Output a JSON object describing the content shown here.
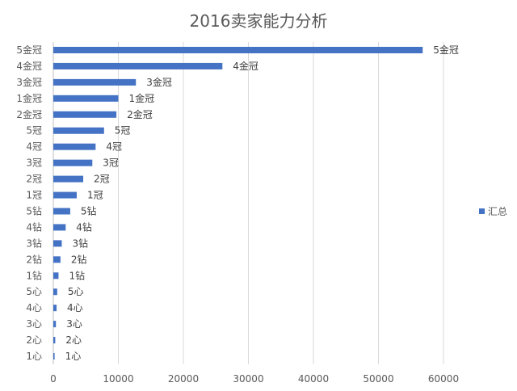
{
  "chart_data": {
    "type": "bar",
    "orientation": "horizontal",
    "title": "2016卖家能力分析",
    "categories": [
      "5金冠",
      "4金冠",
      "3金冠",
      "1金冠",
      "2金冠",
      "5冠",
      "4冠",
      "3冠",
      "2冠",
      "1冠",
      "5钻",
      "4钻",
      "3钻",
      "2钻",
      "1钻",
      "5心",
      "4心",
      "3心",
      "2心",
      "1心"
    ],
    "series": [
      {
        "name": "汇总",
        "color": "#4472C4",
        "values": [
          56800,
          26000,
          12700,
          10000,
          9700,
          7800,
          6500,
          6000,
          4600,
          3600,
          2600,
          1900,
          1300,
          1100,
          800,
          600,
          500,
          400,
          300,
          200
        ]
      }
    ],
    "data_labels": [
      "5金冠",
      "4金冠",
      "3金冠",
      "1金冠",
      "2金冠",
      "5冠",
      "4冠",
      "3冠",
      "2冠",
      "1冠",
      "5钻",
      "4钻",
      "3钻",
      "2钻",
      "1钻",
      "5心",
      "4心",
      "3心",
      "2心",
      "1心"
    ],
    "x_ticks": [
      "0",
      "10000",
      "20000",
      "30000",
      "40000",
      "50000",
      "60000"
    ],
    "xlim": [
      0,
      60000
    ],
    "grid": true,
    "legend": "right"
  }
}
